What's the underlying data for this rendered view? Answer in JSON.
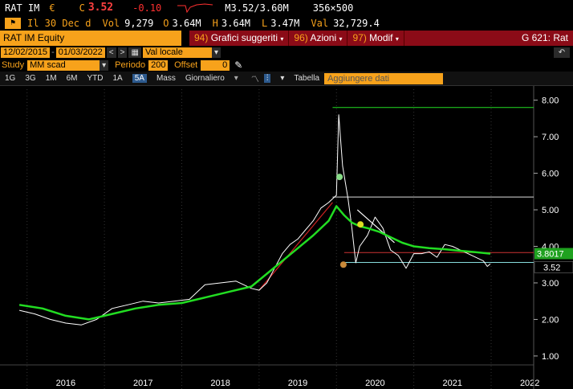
{
  "header": {
    "ticker": "RAT IM",
    "currency": "€",
    "c_label": "C",
    "price": "3.52",
    "change": "-0.10",
    "m_quote": "M3.52/3.60M",
    "size": "356×500",
    "date_line": "Il 30 Dec d",
    "vol_label": "Vol",
    "vol": "9,279",
    "o_label": "O",
    "open": "3.64M",
    "h_label": "H",
    "high": "3.64M",
    "l_label": "L",
    "low": "3.47M",
    "val_label": "Val",
    "val": "32,729.4"
  },
  "titlebar": {
    "security": "RAT IM Equity",
    "menu1_num": "94)",
    "menu1": "Grafici suggeriti",
    "menu2_num": "96)",
    "menu2": "Azioni",
    "menu3_num": "97)",
    "menu3": "Modif",
    "function": "G 621: Rat"
  },
  "datebar": {
    "start": "12/02/2015",
    "end": "01/03/2022",
    "currency_mode": "Val locale"
  },
  "studybar": {
    "study_label": "Study",
    "study_value": "MM scad",
    "period_label": "Periodo",
    "period_value": "200",
    "offset_label": "Offset",
    "offset_value": "0"
  },
  "toolbar": {
    "ranges": [
      "1G",
      "3G",
      "1M",
      "6M",
      "YTD",
      "1A",
      "5A",
      "Mass"
    ],
    "selected": "5A",
    "interval": "Giornaliero",
    "table": "Tabella",
    "add_data_placeholder": "Aggiungere dati"
  },
  "colors": {
    "price": "#ffffff",
    "ma": "#22dd22",
    "trend_red": "#cc2222",
    "accent": "#f7a21b"
  },
  "chart_data": {
    "type": "line",
    "x_ticks": [
      "2016",
      "2017",
      "2018",
      "2019",
      "2020",
      "2021",
      "2022"
    ],
    "y_ticks": [
      1.0,
      2.0,
      3.0,
      4.0,
      5.0,
      6.0,
      7.0,
      8.0
    ],
    "ylim": [
      0.8,
      8.3
    ],
    "last_price_label": "3.52",
    "ma_label": "3.8017",
    "hlines": [
      7.8,
      5.35,
      3.83,
      3.56
    ],
    "series": [
      {
        "name": "",
        "kind": "price",
        "x": [
          2015.9,
          2016.1,
          2016.3,
          2016.5,
          2016.7,
          2016.9,
          2017.1,
          2017.3,
          2017.5,
          2017.7,
          2017.9,
          2018.1,
          2018.3,
          2018.5,
          2018.7,
          2018.9,
          2019.0,
          2019.1,
          2019.2,
          2019.3,
          2019.4,
          2019.5,
          2019.6,
          2019.7,
          2019.8,
          2019.9,
          2019.95,
          2020.0,
          2020.03,
          2020.08,
          2020.15,
          2020.2,
          2020.25,
          2020.3,
          2020.4,
          2020.5,
          2020.6,
          2020.7,
          2020.8,
          2020.9,
          2021.0,
          2021.1,
          2021.2,
          2021.3,
          2021.4,
          2021.5,
          2021.6,
          2021.7,
          2021.8,
          2021.9,
          2021.95,
          2021.99
        ],
        "y": [
          2.25,
          2.15,
          2.0,
          1.9,
          1.85,
          2.0,
          2.3,
          2.4,
          2.5,
          2.45,
          2.5,
          2.55,
          2.95,
          3.0,
          3.05,
          2.85,
          2.8,
          3.0,
          3.4,
          3.8,
          4.05,
          4.2,
          4.45,
          4.7,
          5.05,
          5.2,
          5.3,
          5.4,
          7.6,
          6.2,
          5.3,
          4.5,
          3.55,
          4.0,
          4.3,
          4.8,
          4.5,
          3.9,
          3.75,
          3.4,
          3.8,
          3.8,
          3.85,
          3.7,
          4.05,
          4.0,
          3.9,
          3.8,
          3.7,
          3.6,
          3.45,
          3.52
        ]
      },
      {
        "name": "",
        "kind": "ma",
        "x": [
          2015.9,
          2016.2,
          2016.5,
          2016.8,
          2017.1,
          2017.4,
          2017.7,
          2018.0,
          2018.3,
          2018.6,
          2018.9,
          2019.1,
          2019.3,
          2019.5,
          2019.7,
          2019.9,
          2020.0,
          2020.1,
          2020.2,
          2020.3,
          2020.4,
          2020.55,
          2020.7,
          2020.85,
          2021.0,
          2021.2,
          2021.4,
          2021.6,
          2021.8,
          2021.99
        ],
        "y": [
          2.4,
          2.3,
          2.1,
          2.0,
          2.15,
          2.3,
          2.4,
          2.45,
          2.6,
          2.75,
          2.9,
          3.25,
          3.6,
          3.95,
          4.3,
          4.7,
          5.1,
          4.85,
          4.65,
          4.55,
          4.5,
          4.4,
          4.25,
          4.1,
          4.0,
          3.95,
          3.92,
          3.88,
          3.84,
          3.8
        ]
      }
    ],
    "markers": [
      {
        "x": 2020.04,
        "y": 5.9,
        "color": "#88dd88"
      },
      {
        "x": 2020.31,
        "y": 4.6,
        "color": "#dddd22"
      },
      {
        "x": 2020.09,
        "y": 3.5,
        "color": "#c98a3a"
      }
    ]
  }
}
